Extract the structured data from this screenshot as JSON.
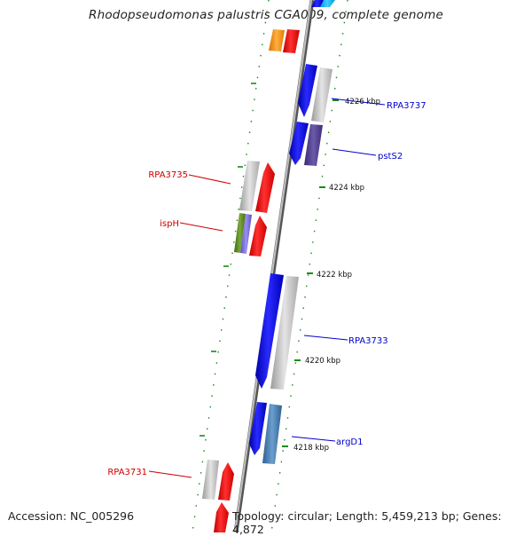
{
  "title": "Rhodopseudomonas palustris CGA009, complete genome",
  "footer": {
    "accession": "Accession: NC_005296",
    "topology": "Topology: circular; Length: 5,459,213 bp; Genes: 4,872"
  },
  "scale_labels": [
    "4226 kbp",
    "4224 kbp",
    "4222 kbp",
    "4220 kbp",
    "4218 kbp"
  ],
  "gene_labels": {
    "left": [
      "RPA3735",
      "ispH",
      "RPA3731"
    ],
    "right": [
      "RPA3737",
      "pstS2",
      "RPA3733",
      "argD1"
    ]
  },
  "colors": {
    "label_left": "#cc0000",
    "label_right": "#0000cc",
    "tick": "#228b22",
    "backbone": "#888888"
  }
}
